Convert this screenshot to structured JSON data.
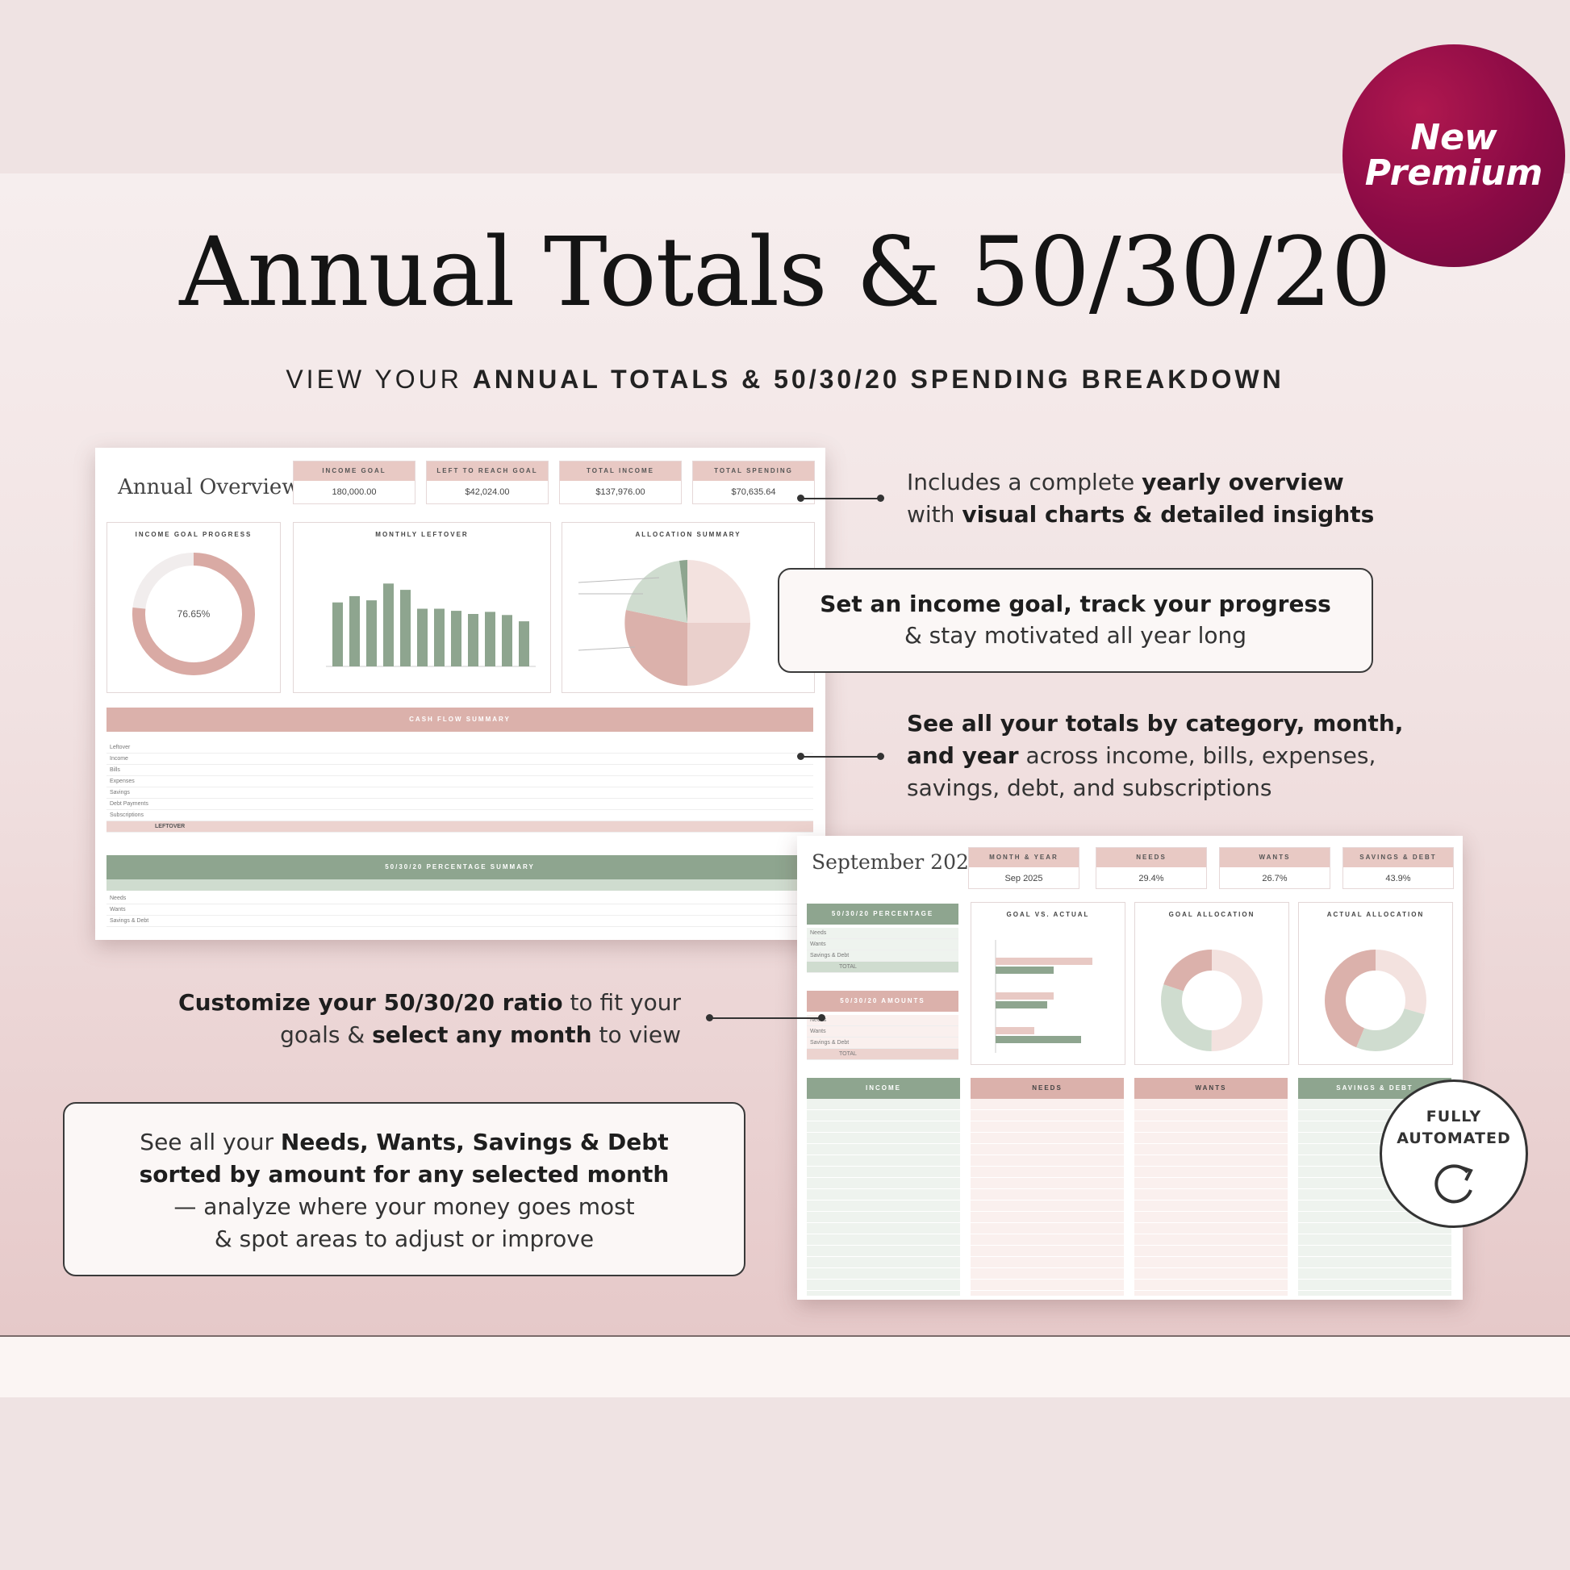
{
  "badge": {
    "line1": "New",
    "line2": "Premium"
  },
  "title": "Annual Totals & 50/30/20",
  "subtitle": {
    "prefix": "VIEW YOUR ",
    "bold": "ANNUAL TOTALS & 50/30/20 SPENDING BREAKDOWN"
  },
  "callouts": {
    "overview": {
      "t1": "Includes a complete ",
      "b1": "yearly overview",
      "t2": "with ",
      "b2": "visual charts & detailed insights"
    },
    "goal": {
      "b1": "Set an income goal, track your progress",
      "t1": "& stay motivated all year long"
    },
    "totals": {
      "b1": "See all your totals by category, month,",
      "b2": "and year",
      "t1": " across income, bills, expenses,",
      "t2": "savings, debt, and subscriptions"
    },
    "ratio": {
      "b1": "Customize your 50/30/20 ratio",
      "t1": " to fit your",
      "t2": "goals & ",
      "b2": "select any month",
      "t3": " to view"
    },
    "sorted": {
      "t1": "See all your ",
      "b1": "Needs, Wants, Savings & Debt",
      "b2": "sorted by amount for any selected month",
      "t2": "— analyze where your money goes most",
      "t3": "& spot areas to adjust or improve"
    }
  },
  "annual": {
    "title": "Annual Overview",
    "kpis": [
      {
        "label": "INCOME GOAL",
        "value": "180,000.00"
      },
      {
        "label": "LEFT TO REACH GOAL",
        "value": "$42,024.00"
      },
      {
        "label": "TOTAL INCOME",
        "value": "$137,976.00"
      },
      {
        "label": "TOTAL SPENDING",
        "value": "$70,635.64"
      }
    ],
    "panels": {
      "progress": "INCOME GOAL PROGRESS",
      "leftover": "MONTHLY LEFTOVER",
      "allocation": "ALLOCATION SUMMARY"
    },
    "progress_value": "76.65%",
    "progress_fraction": 0.7665,
    "leftover_bars": [
      6100,
      6700,
      6300,
      7900,
      7300,
      5500,
      5500,
      5300,
      5000,
      5200,
      4900,
      4300
    ],
    "cashflow_head": "CASH FLOW SUMMARY",
    "cashflow_rows": [
      "Leftover",
      "Income",
      "Bills",
      "Expenses",
      "Savings",
      "Debt Payments",
      "Subscriptions"
    ],
    "cashflow_total": "LEFTOVER",
    "ratio_head": "50/30/20 PERCENTAGE SUMMARY",
    "ratio_rows": [
      "Needs",
      "Wants",
      "Savings & Debt"
    ]
  },
  "monthly": {
    "title": "September 2025",
    "kpis": [
      {
        "label": "MONTH & YEAR",
        "value": "Sep 2025"
      },
      {
        "label": "NEEDS",
        "value": "29.4%"
      },
      {
        "label": "WANTS",
        "value": "26.7%"
      },
      {
        "label": "SAVINGS & DEBT",
        "value": "43.9%"
      }
    ],
    "side1": "50/30/20 PERCENTAGE",
    "side2": "50/30/20 AMOUNTS",
    "side_rows": [
      "Needs",
      "Wants",
      "Savings & Debt"
    ],
    "panels": {
      "gva": "GOAL VS. ACTUAL",
      "goal": "GOAL ALLOCATION",
      "actual": "ACTUAL ALLOCATION"
    },
    "goal_alloc": [
      50,
      30,
      20
    ],
    "actual_alloc": [
      29.4,
      26.7,
      43.9
    ],
    "cols": [
      "INCOME",
      "NEEDS",
      "WANTS",
      "SAVINGS & DEBT"
    ],
    "total_label": "TOTAL"
  },
  "automated": {
    "line1": "FULLY",
    "line2": "AUTOMATED"
  },
  "colors": {
    "rose": "#d9aaa4",
    "sage": "#8ea58f",
    "blush": "#f3e2df",
    "mint": "#cfdccf"
  }
}
